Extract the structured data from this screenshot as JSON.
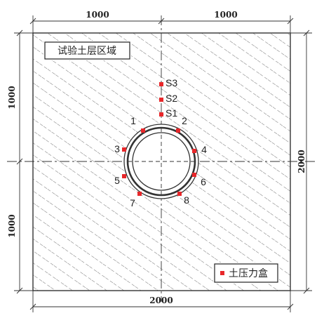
{
  "diagram": {
    "region_label": "试验土层区域",
    "legend_label": "土压力盒",
    "legend_marker_color": "#e8272a",
    "sensor_color": "#e8272a",
    "dimensions": {
      "top_left": "1000",
      "top_right": "1000",
      "bottom": "2000",
      "left_top": "1000",
      "left_bottom": "1000",
      "right": "2000"
    },
    "surface_sensors": [
      "S3",
      "S2",
      "S1"
    ],
    "ring_sensors": [
      "1",
      "2",
      "3",
      "4",
      "5",
      "6",
      "7",
      "8"
    ]
  }
}
